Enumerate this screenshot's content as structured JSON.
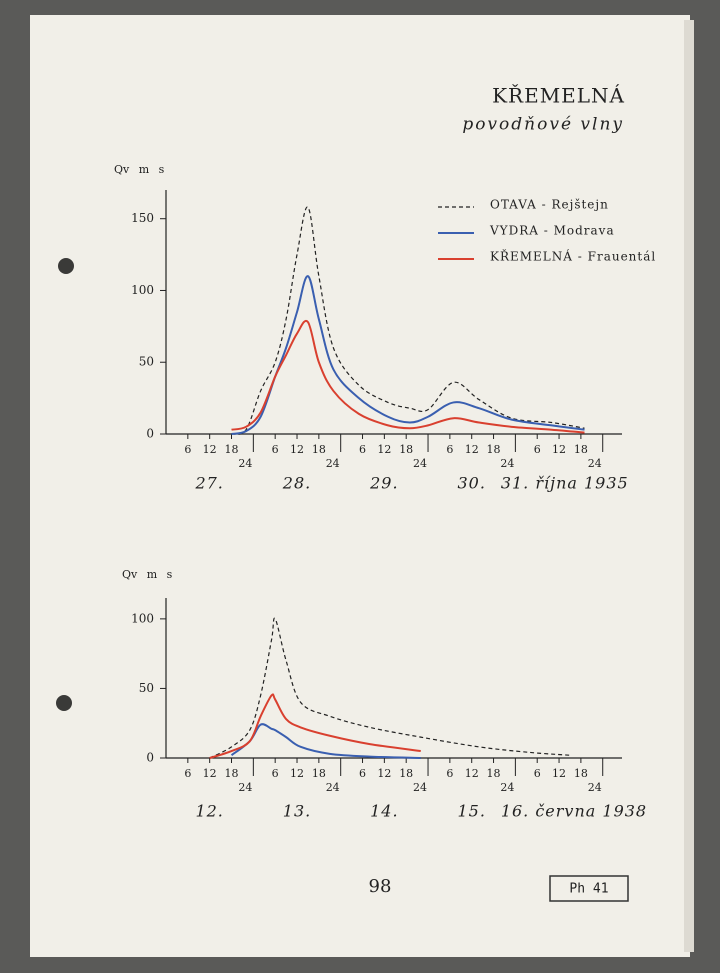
{
  "header": {
    "title": "KŘEMELNÁ",
    "subtitle": "povodňové vlny"
  },
  "chart_data": [
    {
      "type": "line",
      "y_label": "Qv m s",
      "x": [
        18,
        22,
        26,
        30,
        33,
        36,
        39,
        42,
        46,
        53,
        61,
        67,
        72,
        79,
        86,
        95,
        106,
        115
      ],
      "series": [
        {
          "name": "OTAVA - Rejštejn",
          "color": "#222222",
          "dashed": true,
          "values": [
            0,
            3,
            30,
            50,
            80,
            125,
            158,
            110,
            60,
            34,
            22,
            18,
            17,
            36,
            24,
            11,
            8,
            4
          ]
        },
        {
          "name": "VYDRA - Modrava",
          "color": "#3a5fb0",
          "dashed": false,
          "values": [
            0,
            2,
            12,
            40,
            60,
            85,
            110,
            80,
            45,
            25,
            12,
            8,
            12,
            22,
            18,
            10,
            6,
            3
          ]
        },
        {
          "name": "KŘEMELNÁ - Frauentál",
          "color": "#d9402f",
          "dashed": false,
          "values": [
            3,
            5,
            15,
            40,
            55,
            70,
            78,
            50,
            30,
            14,
            6,
            4,
            6,
            11,
            8,
            5,
            3,
            1
          ]
        }
      ],
      "xlim": [
        0,
        122
      ],
      "ylim": [
        0,
        170
      ],
      "yticks": [
        0,
        50,
        100,
        150
      ],
      "xticks": [
        6,
        12,
        18,
        24,
        {
          "value": 30,
          "label": "6"
        },
        {
          "value": 36,
          "label": "12"
        },
        {
          "value": 42,
          "label": "18"
        },
        {
          "value": 48,
          "label": "24"
        },
        {
          "value": 54,
          "label": "6"
        },
        {
          "value": 60,
          "label": "12"
        },
        {
          "value": 66,
          "label": "18"
        },
        {
          "value": 72,
          "label": "24"
        },
        {
          "value": 78,
          "label": "6"
        },
        {
          "value": 84,
          "label": "12"
        },
        {
          "value": 90,
          "label": "18"
        },
        {
          "value": 96,
          "label": "24"
        },
        {
          "value": 102,
          "label": "6"
        },
        {
          "value": 108,
          "label": "12"
        },
        {
          "value": 114,
          "label": "18"
        },
        {
          "value": 120,
          "label": "24"
        }
      ],
      "day_labels": [
        "27.",
        "28.",
        "29.",
        "30.",
        "31. října 1935"
      ],
      "legend": "upper right"
    },
    {
      "type": "line",
      "y_label": "Qv m s",
      "x": [
        12,
        18,
        23,
        26,
        29,
        30,
        33,
        37,
        45,
        56,
        70,
        86,
        100,
        111
      ],
      "series": [
        {
          "color": "#222222",
          "dashed": true,
          "values": [
            0,
            8,
            20,
            45,
            85,
            100,
            70,
            40,
            30,
            22,
            15,
            8,
            4,
            2
          ]
        },
        {
          "color": "#3a5fb0",
          "dashed": false,
          "values": [
            null,
            2,
            12,
            24,
            21,
            20,
            15,
            8,
            3,
            1,
            0,
            null,
            null,
            null
          ]
        },
        {
          "color": "#d9402f",
          "dashed": false,
          "values": [
            0,
            5,
            12,
            30,
            45,
            42,
            28,
            22,
            16,
            10,
            5,
            null,
            null,
            null
          ]
        }
      ],
      "xlim": [
        0,
        122
      ],
      "ylim": [
        0,
        115
      ],
      "yticks": [
        0,
        50,
        100
      ],
      "xticks": [
        6,
        12,
        18,
        24,
        {
          "value": 30,
          "label": "6"
        },
        {
          "value": 36,
          "label": "12"
        },
        {
          "value": 42,
          "label": "18"
        },
        {
          "value": 48,
          "label": "24"
        },
        {
          "value": 54,
          "label": "6"
        },
        {
          "value": 60,
          "label": "12"
        },
        {
          "value": 66,
          "label": "18"
        },
        {
          "value": 72,
          "label": "24"
        },
        {
          "value": 78,
          "label": "6"
        },
        {
          "value": 84,
          "label": "12"
        },
        {
          "value": 90,
          "label": "18"
        },
        {
          "value": 96,
          "label": "24"
        },
        {
          "value": 102,
          "label": "6"
        },
        {
          "value": 108,
          "label": "12"
        },
        {
          "value": 114,
          "label": "18"
        },
        {
          "value": 120,
          "label": "24"
        }
      ],
      "day_labels": [
        "12.",
        "13.",
        "14.",
        "15.",
        "16. června 1938"
      ]
    }
  ],
  "footer": {
    "page": "98",
    "ref": "Ph 41"
  }
}
